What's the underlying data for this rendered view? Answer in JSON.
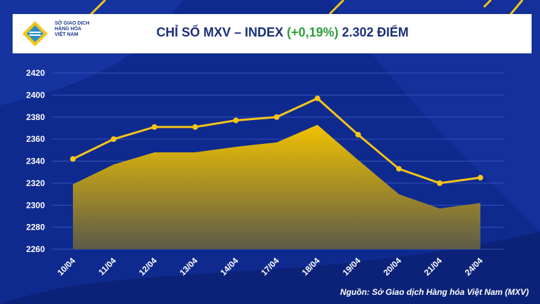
{
  "header": {
    "logo_line1": "SỞ GIAO DỊCH",
    "logo_line2": "HÀNG HÓA",
    "logo_line3": "VIỆT NAM",
    "title_main": "CHỈ SỐ MXV – INDEX ",
    "title_pct": "(+0,19%)",
    "title_tail": " 2.302 ĐIỂM"
  },
  "source": "Nguồn: Sở Giao dịch Hàng hóa Việt Nam (MXV)",
  "colors": {
    "line": "#f5c518",
    "area_top": "#f2c200",
    "area_bottom": "#5b5a4a",
    "bg": "#0f2a8f"
  },
  "chart_data": {
    "type": "line",
    "categories": [
      "10/04",
      "11/04",
      "12/04",
      "13/04",
      "14/04",
      "17/04",
      "18/04",
      "19/04",
      "20/04",
      "21/04",
      "24/04"
    ],
    "series": [
      {
        "values": [
          2342,
          2360,
          2371,
          2371,
          2377,
          2380,
          2397,
          2364,
          2333,
          2320,
          2325
        ]
      },
      {
        "values": [
          2319,
          2337,
          2348,
          2348,
          2353,
          2357,
          2373,
          2341,
          2310,
          2297,
          2302
        ]
      }
    ],
    "ylim": [
      2260,
      2420
    ],
    "yticks": [
      2260,
      2280,
      2300,
      2320,
      2340,
      2360,
      2380,
      2400,
      2420
    ],
    "grid": true
  }
}
